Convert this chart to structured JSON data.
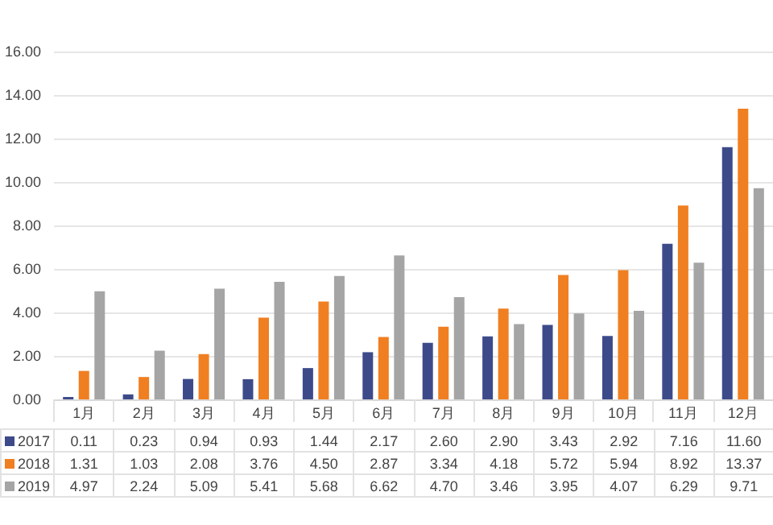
{
  "chart_data": {
    "type": "bar",
    "categories": [
      "1月",
      "2月",
      "3月",
      "4月",
      "5月",
      "6月",
      "7月",
      "8月",
      "9月",
      "10月",
      "11月",
      "12月"
    ],
    "series": [
      {
        "name": "2017",
        "color": "#3d4a8a",
        "values": [
          0.11,
          0.23,
          0.94,
          0.93,
          1.44,
          2.17,
          2.6,
          2.9,
          3.43,
          2.92,
          7.16,
          11.6
        ],
        "value_labels": [
          "0.11",
          "0.23",
          "0.94",
          "0.93",
          "1.44",
          "2.17",
          "2.60",
          "2.90",
          "3.43",
          "2.92",
          "7.16",
          "11.60"
        ]
      },
      {
        "name": "2018",
        "color": "#f07f22",
        "values": [
          1.31,
          1.03,
          2.08,
          3.76,
          4.5,
          2.87,
          3.34,
          4.18,
          5.72,
          5.94,
          8.92,
          13.37
        ],
        "value_labels": [
          "1.31",
          "1.03",
          "2.08",
          "3.76",
          "4.50",
          "2.87",
          "3.34",
          "4.18",
          "5.72",
          "5.94",
          "8.92",
          "13.37"
        ]
      },
      {
        "name": "2019",
        "color": "#a5a5a5",
        "values": [
          4.97,
          2.24,
          5.09,
          5.41,
          5.68,
          6.62,
          4.7,
          3.46,
          3.95,
          4.07,
          6.29,
          9.71
        ],
        "value_labels": [
          "4.97",
          "2.24",
          "5.09",
          "5.41",
          "5.68",
          "6.62",
          "4.70",
          "3.46",
          "3.95",
          "4.07",
          "6.29",
          "9.71"
        ]
      }
    ],
    "ylim": [
      0,
      16
    ],
    "yticks": [
      {
        "value": 0,
        "label": "0.00"
      },
      {
        "value": 2,
        "label": "2.00"
      },
      {
        "value": 4,
        "label": "4.00"
      },
      {
        "value": 6,
        "label": "6.00"
      },
      {
        "value": 8,
        "label": "8.00"
      },
      {
        "value": 10,
        "label": "10.00"
      },
      {
        "value": 12,
        "label": "12.00"
      },
      {
        "value": 14,
        "label": "14.00"
      },
      {
        "value": 16,
        "label": "16.00"
      }
    ],
    "grid": "y",
    "legend": "bottom"
  }
}
